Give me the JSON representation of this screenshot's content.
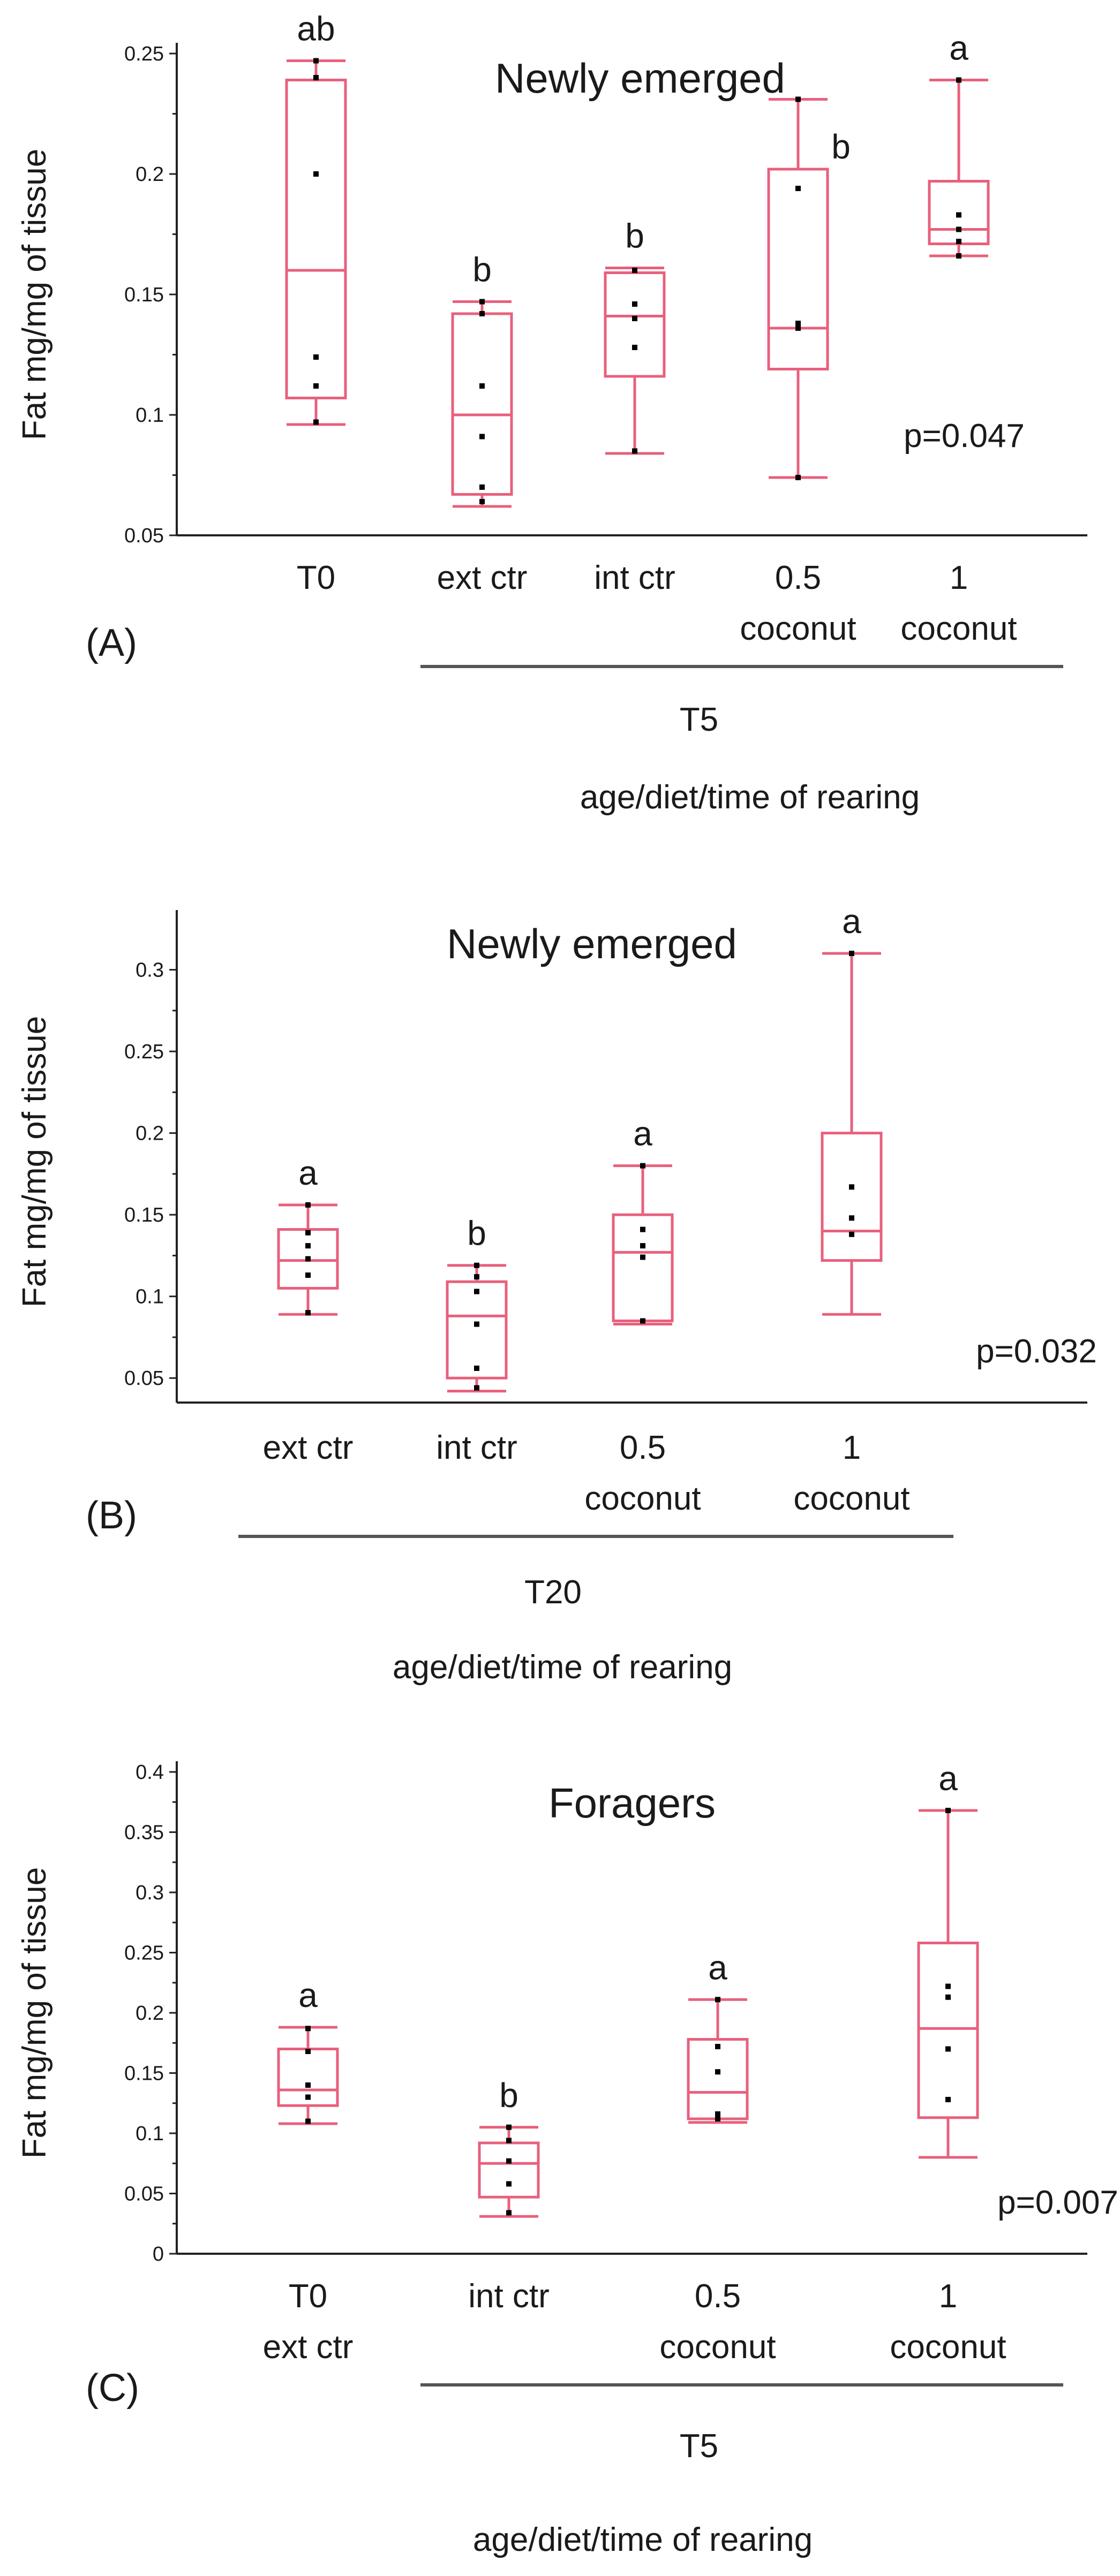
{
  "figure": {
    "box_color": "#e8607c",
    "ylabel": "Fat mg/mg of tissue",
    "xlabel": "age/diet/time of rearing"
  },
  "chart_data": [
    {
      "type": "box",
      "panel_label": "(A)",
      "title": "Newly emerged",
      "ylabel": "Fat mg/mg of tissue",
      "xlabel": "age/diet/time of rearing",
      "ylim": [
        0.05,
        0.25
      ],
      "yticks": [
        0.05,
        0.1,
        0.15,
        0.2,
        0.25
      ],
      "ytick_labels": [
        "0.05",
        "0.1",
        "0.15",
        "0.2",
        "0.25"
      ],
      "p_value": "p=0.047",
      "group": {
        "label": "T5",
        "from": 1,
        "to": 4
      },
      "categories": [
        {
          "label_lines": [
            "T0"
          ],
          "sig": "ab",
          "min": 0.096,
          "q1": 0.107,
          "median": 0.16,
          "q3": 0.239,
          "max": 0.247,
          "points": [
            0.097,
            0.112,
            0.124,
            0.2,
            0.24,
            0.247
          ]
        },
        {
          "label_lines": [
            "ext ctr"
          ],
          "sig": "b",
          "min": 0.062,
          "q1": 0.067,
          "median": 0.1,
          "q3": 0.142,
          "max": 0.147,
          "points": [
            0.064,
            0.07,
            0.091,
            0.112,
            0.142,
            0.147
          ]
        },
        {
          "label_lines": [
            "int ctr"
          ],
          "sig": "b",
          "min": 0.084,
          "q1": 0.116,
          "median": 0.141,
          "q3": 0.159,
          "max": 0.161,
          "points": [
            0.085,
            0.128,
            0.14,
            0.146,
            0.16
          ]
        },
        {
          "label_lines": [
            "0.5",
            "coconut"
          ],
          "sig": "b",
          "min": 0.074,
          "q1": 0.119,
          "median": 0.136,
          "q3": 0.202,
          "max": 0.231,
          "points": [
            0.074,
            0.136,
            0.138,
            0.194,
            0.231
          ]
        },
        {
          "label_lines": [
            "1",
            "coconut"
          ],
          "sig": "a",
          "min": 0.166,
          "q1": 0.171,
          "median": 0.177,
          "q3": 0.197,
          "max": 0.239,
          "points": [
            0.166,
            0.172,
            0.177,
            0.183,
            0.239
          ]
        }
      ]
    },
    {
      "type": "box",
      "panel_label": "(B)",
      "title": "Newly emerged",
      "ylabel": "Fat mg/mg of tissue",
      "xlabel": "age/diet/time of rearing",
      "ylim": [
        0.035,
        0.33
      ],
      "yticks": [
        0.05,
        0.1,
        0.15,
        0.2,
        0.25,
        0.3
      ],
      "ytick_labels": [
        "0.05",
        "0.1",
        "0.15",
        "0.2",
        "0.25",
        "0.3"
      ],
      "p_value": "p=0.032",
      "group": {
        "label": "T20",
        "from": 0,
        "to": 3
      },
      "categories": [
        {
          "label_lines": [
            "ext ctr"
          ],
          "sig": "a",
          "min": 0.089,
          "q1": 0.105,
          "median": 0.122,
          "q3": 0.141,
          "max": 0.156,
          "points": [
            0.09,
            0.113,
            0.123,
            0.131,
            0.139,
            0.156
          ]
        },
        {
          "label_lines": [
            "int ctr"
          ],
          "sig": "b",
          "min": 0.042,
          "q1": 0.05,
          "median": 0.088,
          "q3": 0.109,
          "max": 0.119,
          "points": [
            0.044,
            0.056,
            0.083,
            0.103,
            0.112,
            0.119
          ]
        },
        {
          "label_lines": [
            "0.5",
            "coconut"
          ],
          "sig": "a",
          "min": 0.083,
          "q1": 0.085,
          "median": 0.127,
          "q3": 0.15,
          "max": 0.18,
          "points": [
            0.085,
            0.124,
            0.131,
            0.141,
            0.18
          ]
        },
        {
          "label_lines": [
            "1",
            "coconut"
          ],
          "sig": "a",
          "min": 0.089,
          "q1": 0.122,
          "median": 0.14,
          "q3": 0.2,
          "max": 0.31,
          "points": [
            0.138,
            0.148,
            0.167,
            0.31
          ]
        }
      ]
    },
    {
      "type": "box",
      "panel_label": "(C)",
      "title": "Foragers",
      "ylabel": "Fat mg/mg of tissue",
      "xlabel": "age/diet/time of rearing",
      "ylim": [
        0,
        0.4
      ],
      "yticks": [
        0,
        0.05,
        0.1,
        0.15,
        0.2,
        0.25,
        0.3,
        0.35,
        0.4
      ],
      "ytick_labels": [
        "0",
        "0.05",
        "0.1",
        "0.15",
        "0.2",
        "0.25",
        "0.3",
        "0.35",
        "0.4"
      ],
      "p_value": "p=0.007",
      "group": {
        "label": "T5",
        "from": 1,
        "to": 3
      },
      "categories": [
        {
          "label_lines": [
            "T0",
            "ext ctr"
          ],
          "sig": "a",
          "min": 0.108,
          "q1": 0.123,
          "median": 0.136,
          "q3": 0.17,
          "max": 0.188,
          "points": [
            0.11,
            0.13,
            0.14,
            0.168,
            0.187
          ]
        },
        {
          "label_lines": [
            "int ctr"
          ],
          "sig": "b",
          "min": 0.031,
          "q1": 0.047,
          "median": 0.075,
          "q3": 0.092,
          "max": 0.105,
          "points": [
            0.034,
            0.058,
            0.077,
            0.094,
            0.105
          ]
        },
        {
          "label_lines": [
            "0.5",
            "coconut"
          ],
          "sig": "a",
          "min": 0.109,
          "q1": 0.112,
          "median": 0.134,
          "q3": 0.178,
          "max": 0.211,
          "points": [
            0.112,
            0.116,
            0.151,
            0.172,
            0.211
          ]
        },
        {
          "label_lines": [
            "1",
            "coconut"
          ],
          "sig": "a",
          "min": 0.08,
          "q1": 0.113,
          "median": 0.187,
          "q3": 0.258,
          "max": 0.368,
          "points": [
            0.128,
            0.17,
            0.213,
            0.222,
            0.368
          ]
        }
      ]
    }
  ]
}
